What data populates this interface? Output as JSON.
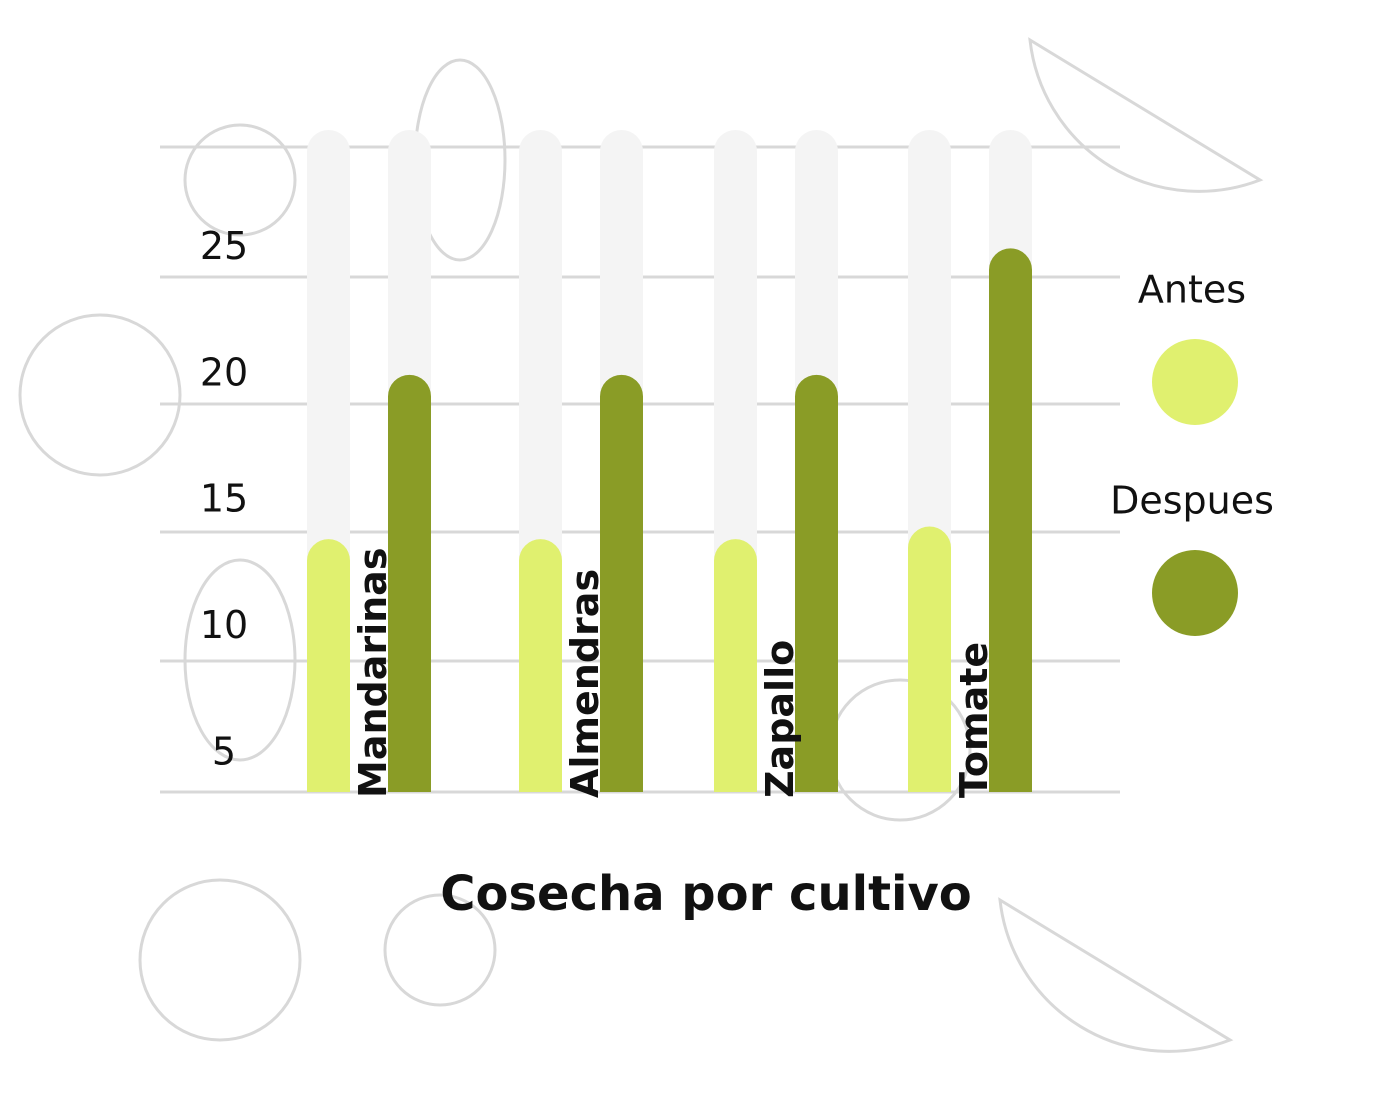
{
  "chart_data": {
    "type": "bar",
    "title": "Cosecha por cultivo",
    "categories": [
      "Mandarinas",
      "Almendras",
      "Zapallo",
      "Tomate"
    ],
    "series": [
      {
        "name": "Antes",
        "color": "#e0f06f",
        "values": [
          13.5,
          13.5,
          13.5,
          14
        ]
      },
      {
        "name": "Despues",
        "color": "#8a9c26",
        "values": [
          20,
          20,
          20,
          25
        ]
      }
    ],
    "ylim": [
      3.5,
      30
    ],
    "yticks": [
      5,
      10,
      15,
      20,
      25
    ],
    "grid": true,
    "legend": "right"
  }
}
